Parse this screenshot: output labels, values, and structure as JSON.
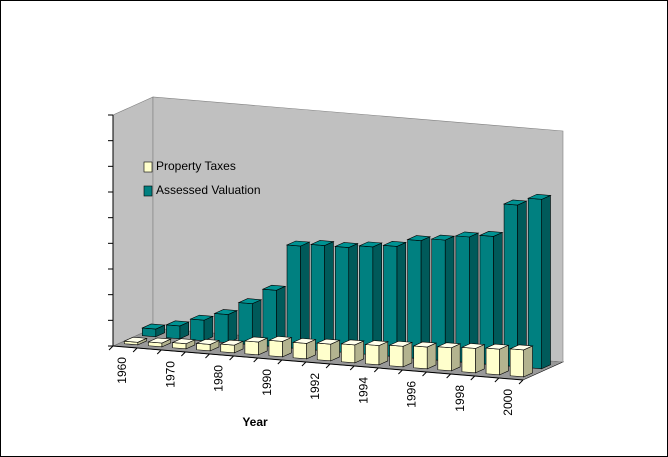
{
  "chart_data": {
    "type": "bar3d",
    "x_label": "Year",
    "categories": [
      "1960",
      null,
      "1970",
      null,
      "1980",
      null,
      "1990",
      null,
      "1992",
      null,
      "1994",
      null,
      "1996",
      null,
      "1998",
      null,
      "2000"
    ],
    "series": [
      {
        "name": "Property Taxes",
        "color": "#ffffcc",
        "values": [
          0.1,
          0.15,
          0.2,
          0.25,
          0.3,
          0.5,
          0.6,
          0.6,
          0.65,
          0.7,
          0.75,
          0.8,
          0.85,
          0.9,
          0.95,
          1.0,
          1.05
        ]
      },
      {
        "name": "Assessed Valuation",
        "color": "#008080",
        "values": [
          0.3,
          0.5,
          0.8,
          1.1,
          1.6,
          2.2,
          4.0,
          4.1,
          4.1,
          4.2,
          4.3,
          4.6,
          4.7,
          4.9,
          5.0,
          6.3,
          6.6
        ]
      }
    ],
    "ylim": [
      0,
      9
    ],
    "yticks": [
      0,
      1,
      2,
      3,
      4,
      5,
      6,
      7,
      8,
      9
    ]
  }
}
